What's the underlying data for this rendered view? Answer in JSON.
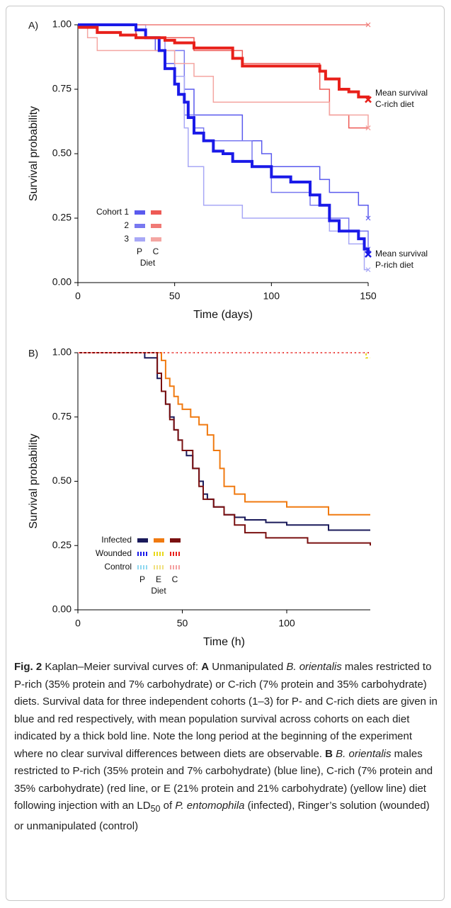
{
  "chart_data": [
    {
      "type": "step",
      "panel": "A)",
      "xlabel": "Time (days)",
      "ylabel": "Survival probability",
      "xlim": [
        0,
        150
      ],
      "xticks": [
        0,
        50,
        100,
        150
      ],
      "ylim": [
        0,
        1
      ],
      "yticks": [
        {
          "value": 0,
          "label": "0.00"
        },
        0.25,
        {
          "value": 0.5,
          "label": "0.50"
        },
        0.75,
        {
          "value": 1,
          "label": "1.00"
        }
      ],
      "end_marker": true,
      "series": [
        {
          "color": "#5a5aee",
          "width": 1.5,
          "x": [
            0,
            30,
            40,
            45,
            50,
            55,
            60,
            80,
            85,
            95,
            100,
            125,
            130,
            145,
            150
          ],
          "values": [
            1,
            0.95,
            0.9,
            0.85,
            0.8,
            0.75,
            0.65,
            0.65,
            0.55,
            0.5,
            0.45,
            0.4,
            0.35,
            0.3,
            0.25
          ]
        },
        {
          "color": "#7878f0",
          "width": 1.5,
          "x": [
            0,
            30,
            45,
            55,
            60,
            65,
            80,
            90,
            100,
            120,
            130,
            140,
            150
          ],
          "values": [
            1,
            0.95,
            0.9,
            0.65,
            0.6,
            0.55,
            0.55,
            0.45,
            0.35,
            0.3,
            0.25,
            0.2,
            0.13
          ]
        },
        {
          "color": "#a8a8f6",
          "width": 1.5,
          "x": [
            0,
            35,
            45,
            50,
            55,
            57,
            65,
            80,
            85,
            120,
            130,
            140,
            148,
            150
          ],
          "values": [
            1,
            0.95,
            0.9,
            0.8,
            0.6,
            0.45,
            0.3,
            0.3,
            0.25,
            0.25,
            0.2,
            0.15,
            0.05,
            0.05
          ]
        },
        {
          "color": "#ee5a55",
          "width": 1.5,
          "x": [
            0,
            30,
            45,
            60,
            85,
            120,
            125,
            130,
            140,
            150
          ],
          "values": [
            1,
            0.95,
            0.95,
            0.9,
            0.85,
            0.85,
            0.75,
            0.65,
            0.6,
            0.6
          ]
        },
        {
          "color": "#f07a76",
          "width": 1.5,
          "x": [
            0,
            150
          ],
          "values": [
            1,
            1
          ]
        },
        {
          "color": "#f4a6a2",
          "width": 1.5,
          "x": [
            0,
            5,
            10,
            35,
            50,
            60,
            70,
            120,
            130,
            150
          ],
          "values": [
            1,
            0.95,
            0.9,
            0.9,
            0.85,
            0.8,
            0.7,
            0.7,
            0.65,
            0.6
          ]
        },
        {
          "color": "#1a1ae8",
          "width": 4,
          "x": [
            0,
            30,
            35,
            42,
            45,
            50,
            52,
            55,
            57,
            60,
            65,
            70,
            75,
            80,
            90,
            100,
            110,
            120,
            125,
            130,
            135,
            140,
            145,
            148,
            150
          ],
          "values": [
            1,
            0.98,
            0.95,
            0.9,
            0.83,
            0.77,
            0.73,
            0.7,
            0.64,
            0.58,
            0.55,
            0.51,
            0.5,
            0.47,
            0.45,
            0.41,
            0.39,
            0.34,
            0.3,
            0.24,
            0.2,
            0.2,
            0.17,
            0.13,
            0.11
          ]
        },
        {
          "color": "#e8201a",
          "width": 4,
          "x": [
            0,
            10,
            22,
            30,
            45,
            50,
            60,
            80,
            85,
            110,
            125,
            128,
            135,
            140,
            145,
            150
          ],
          "values": [
            0.99,
            0.97,
            0.96,
            0.95,
            0.94,
            0.93,
            0.91,
            0.87,
            0.84,
            0.84,
            0.82,
            0.79,
            0.75,
            0.74,
            0.72,
            0.71
          ]
        }
      ],
      "annotations": [
        [
          "Mean survival",
          "C-rich diet"
        ],
        [
          "Mean survival",
          "P-rich diet"
        ]
      ],
      "legend": {
        "rows": [
          "Cohort 1",
          "2",
          "3"
        ],
        "columns": [
          "P",
          "C"
        ],
        "title": "Diet"
      }
    },
    {
      "type": "step",
      "panel": "B)",
      "xlabel": "Time (h)",
      "ylabel": "Survival probability",
      "xlim": [
        0,
        140
      ],
      "xticks": [
        0,
        50,
        100
      ],
      "ylim": [
        0,
        1
      ],
      "yticks": [
        {
          "value": 0,
          "label": "0.00"
        },
        0.25,
        {
          "value": 0.5,
          "label": "0.50"
        },
        0.75,
        {
          "value": 1,
          "label": "1.00"
        }
      ],
      "end_marker": false,
      "series": [
        {
          "color": "#1a1a5a",
          "width": 2,
          "x": [
            0,
            32,
            38,
            40,
            42,
            44,
            46,
            48,
            50,
            52,
            55,
            58,
            60,
            62,
            65,
            70,
            75,
            80,
            90,
            100,
            120,
            140
          ],
          "values": [
            1,
            0.98,
            0.9,
            0.85,
            0.8,
            0.75,
            0.7,
            0.66,
            0.62,
            0.6,
            0.55,
            0.5,
            0.45,
            0.43,
            0.4,
            0.37,
            0.36,
            0.35,
            0.34,
            0.33,
            0.31,
            0.31
          ]
        },
        {
          "color": "#f07a10",
          "width": 2,
          "x": [
            0,
            40,
            42,
            44,
            46,
            48,
            50,
            54,
            58,
            62,
            65,
            68,
            70,
            75,
            80,
            100,
            120,
            140
          ],
          "values": [
            1,
            0.97,
            0.9,
            0.87,
            0.83,
            0.8,
            0.78,
            0.75,
            0.72,
            0.68,
            0.62,
            0.55,
            0.48,
            0.45,
            0.42,
            0.4,
            0.37,
            0.37
          ]
        },
        {
          "color": "#7a1010",
          "width": 2,
          "x": [
            0,
            38,
            40,
            42,
            44,
            46,
            48,
            50,
            55,
            58,
            60,
            65,
            70,
            75,
            80,
            90,
            110,
            140
          ],
          "values": [
            1,
            0.92,
            0.85,
            0.8,
            0.74,
            0.7,
            0.66,
            0.62,
            0.55,
            0.48,
            0.43,
            0.4,
            0.37,
            0.33,
            0.3,
            0.28,
            0.26,
            0.25
          ]
        },
        {
          "color": "#1a1ae8",
          "width": 2,
          "dash": "3 3",
          "x": [
            0,
            140
          ],
          "values": [
            1,
            1
          ]
        },
        {
          "color": "#e8d81a",
          "width": 2,
          "dash": "3 3",
          "x": [
            0,
            138,
            140
          ],
          "values": [
            1,
            0.98,
            0.98
          ]
        },
        {
          "color": "#e8201a",
          "width": 2,
          "dash": "3 3",
          "x": [
            0,
            140
          ],
          "values": [
            1,
            1
          ]
        },
        {
          "color": "#90d8f0",
          "width": 2,
          "dash": "2 4",
          "x": [
            0,
            140
          ],
          "values": [
            1,
            1
          ]
        },
        {
          "color": "#f0e080",
          "width": 2,
          "dash": "2 4",
          "x": [
            0,
            140
          ],
          "values": [
            1,
            1
          ]
        },
        {
          "color": "#f4a0a0",
          "width": 2,
          "dash": "2 4",
          "x": [
            0,
            140
          ],
          "values": [
            1,
            1
          ]
        }
      ],
      "legend": {
        "rows": [
          "Infected",
          "Wounded",
          "Control"
        ],
        "columns": [
          "P",
          "E",
          "C"
        ],
        "title": "Diet"
      }
    }
  ],
  "caption": [
    "Fig. 2",
    "  Kaplan–Meier survival curves of: ",
    "A",
    " Unmanipulated ",
    "B. orientalis",
    " males restricted to P-rich (35% protein and 7% carbohydrate) or C-rich (7% protein and 35% carbohydrate) diets. Survival data for three independent cohorts (1–3) for P- and C-rich diets are given in blue and red respectively, with mean population survival across cohorts on each diet indicated by a thick bold line. Note the long period at the beginning of the experiment where no clear survival differences between diets are observable. ",
    "B ",
    "B. orientalis",
    " males restricted to P-rich (35% protein and 7% carbohydrate) (blue line), C-rich (7% protein and 35% carbohydrate) (red line, or E (21% protein and 21% carbohydrate) (yellow line) diet following injection with an LD",
    "50",
    " of ",
    "P. entomophila",
    " (infected), Ringer’s solution (wounded) or unmanipulated (control)"
  ]
}
